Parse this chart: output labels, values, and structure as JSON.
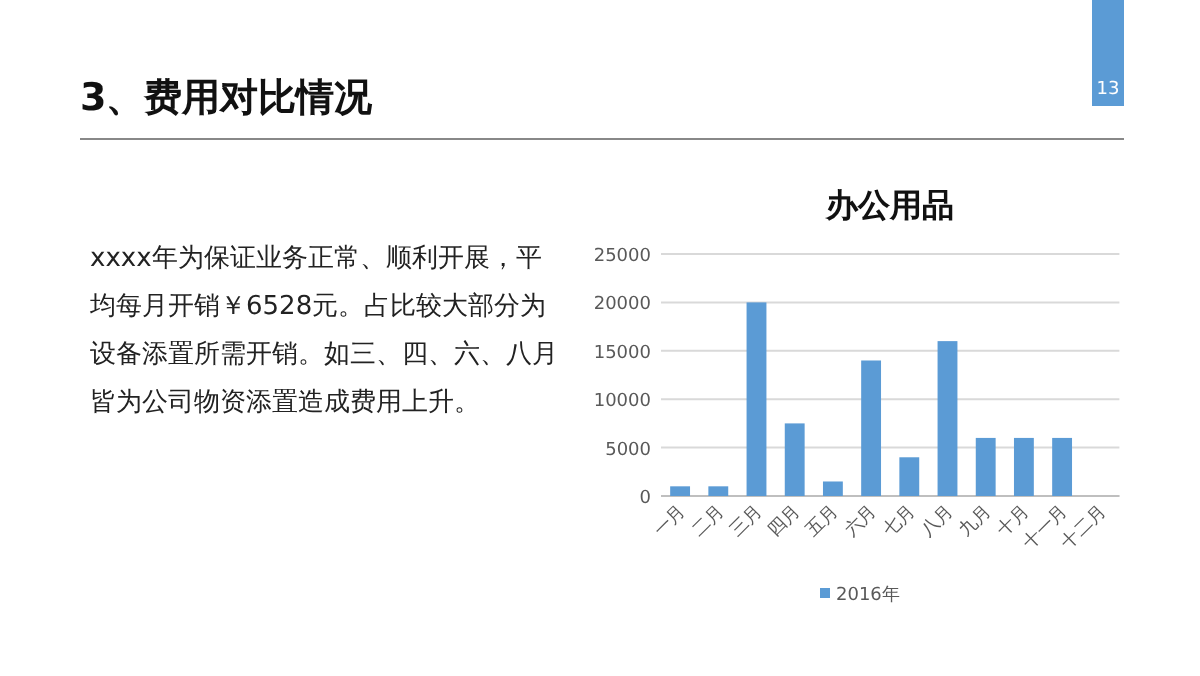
{
  "chart_data": {
    "type": "bar",
    "title": "办公用品",
    "categories": [
      "一月",
      "二月",
      "三月",
      "四月",
      "五月",
      "六月",
      "七月",
      "八月",
      "九月",
      "十月",
      "十一月",
      "十二月"
    ],
    "series": [
      {
        "name": "2016年",
        "color": "#5b9bd5",
        "values": [
          1000,
          1000,
          20000,
          7500,
          1500,
          14000,
          4000,
          16000,
          6000,
          6000,
          6000,
          null
        ]
      }
    ],
    "ylim": [
      0,
      25000
    ],
    "yticks": [
      0,
      5000,
      10000,
      15000,
      20000,
      25000
    ],
    "grid": "y",
    "legend": "bottom",
    "annotations": [
      "3、费用对比情况",
      "xxxx年为保证业务正常、顺利开展，平均每月开销￥6528元。占比较大部分为设备添置所需开销。如三、四、六、八月皆为公司物资添置造成费用上升。",
      "13"
    ]
  }
}
